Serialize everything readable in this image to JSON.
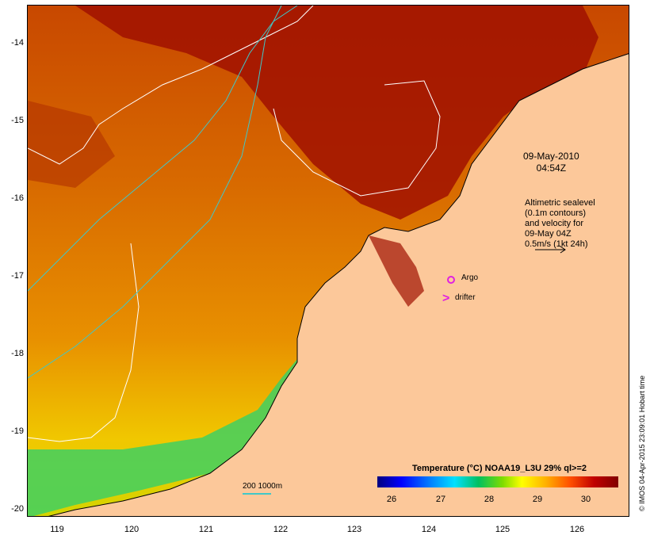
{
  "map": {
    "date_line1": "09-May-2010",
    "date_line2": "04:54Z",
    "legend_lines": [
      "Altimetric sealevel",
      "(0.1m contours)",
      "and velocity for",
      "09-May 04Z",
      "0.5m/s (1kt 24h)"
    ],
    "argo_label": "Argo",
    "drifter_label": "drifter",
    "drifter_symbol": ">",
    "colorbar_title": "Temperature (°C) NOAA19_L3U 29% ql>=2",
    "colorbar_ticks": [
      "26",
      "27",
      "28",
      "29",
      "30"
    ],
    "scale_label": "200  1000m",
    "credit": "© IMOS 04-Apr-2015 23:09:01 Hobart time",
    "lat_ticks": [
      "-14",
      "-15",
      "-16",
      "-17",
      "-18",
      "-19",
      "-20"
    ],
    "lon_ticks": [
      "119",
      "120",
      "121",
      "122",
      "123",
      "124",
      "125",
      "126"
    ],
    "colors": {
      "land": "#fcc89a",
      "warm_sst": "#a01000",
      "mid_sst": "#e08000",
      "cool_sst": "#ffe000",
      "contour_sealevel": "#ffffff",
      "contour_bathy": "#40c8c8",
      "argo": "#e020e0",
      "drifter": "#e020e0"
    }
  }
}
